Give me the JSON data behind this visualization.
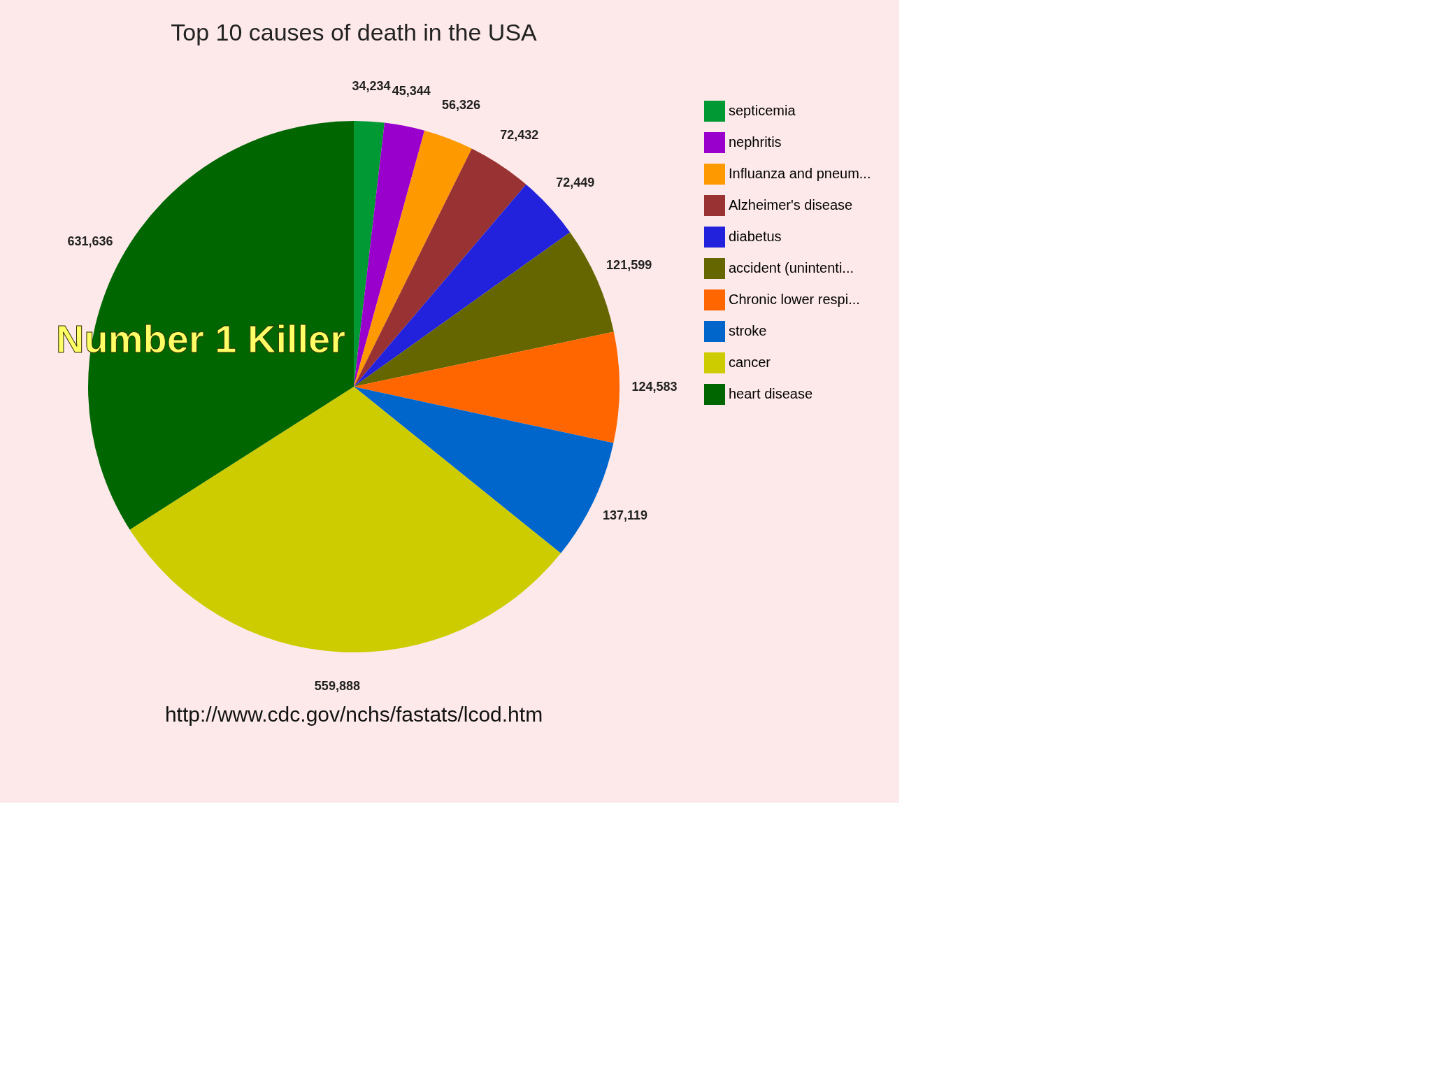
{
  "chart_data": {
    "type": "pie",
    "title": "Top 10 causes of death in the USA",
    "categories": [
      "septicemia",
      "nephritis",
      "Influanza and pneum...",
      "Alzheimer's disease",
      "diabetus",
      "accident (unintenti...",
      "Chronic lower respi...",
      "stroke",
      "cancer",
      "heart disease"
    ],
    "values": [
      34234,
      45344,
      56326,
      72432,
      72449,
      121599,
      124583,
      137119,
      559888,
      631636
    ],
    "colors": [
      "#009933",
      "#9900cc",
      "#ff9900",
      "#993333",
      "#2222dd",
      "#666600",
      "#ff6600",
      "#0066cc",
      "#cccc00",
      "#006600"
    ],
    "value_labels": [
      "34,234",
      "45,344",
      "56,326",
      "72,432",
      "72,449",
      "121,599",
      "124,583",
      "137,119",
      "559,888",
      "631,636"
    ],
    "legend": "right",
    "annotations": [
      "Number 1 Killer",
      "http://www.cdc.gov/nchs/fastats/lcod.htm"
    ]
  }
}
